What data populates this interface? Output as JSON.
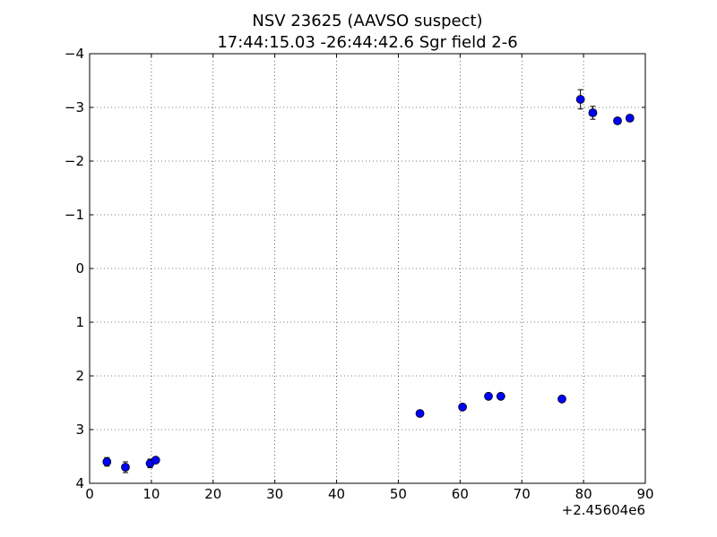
{
  "chart_data": {
    "type": "scatter",
    "title": "NSV 23625 (AAVSO suspect)",
    "subtitle": "17:44:15.03 -26:44:42.6 Sgr field 2-6",
    "xlabel": "",
    "ylabel": "",
    "x_offset_label": "+2.45604e6",
    "xlim": [
      0,
      90
    ],
    "ylim": [
      4,
      -4
    ],
    "y_inverted": true,
    "grid": true,
    "x_ticks": [
      "0",
      "10",
      "20",
      "30",
      "40",
      "50",
      "60",
      "70",
      "80",
      "90"
    ],
    "y_ticks": [
      "−4",
      "−3",
      "−2",
      "−1",
      "0",
      "1",
      "2",
      "3",
      "4"
    ],
    "series": [
      {
        "color": "#0000ff",
        "x": [
          2.8,
          5.8,
          9.8,
          10.7,
          53.5,
          60.4,
          64.6,
          66.6,
          76.5,
          79.5,
          81.5,
          85.5,
          87.5
        ],
        "y": [
          3.6,
          3.7,
          3.63,
          3.57,
          2.7,
          2.58,
          2.38,
          2.38,
          2.43,
          -3.15,
          -2.9,
          -2.75,
          -2.8
        ],
        "yerr": [
          0.08,
          0.1,
          0.08,
          0.05,
          0.05,
          0.05,
          0.04,
          0.04,
          0.04,
          0.18,
          0.12,
          0.05,
          0.06
        ]
      }
    ]
  }
}
